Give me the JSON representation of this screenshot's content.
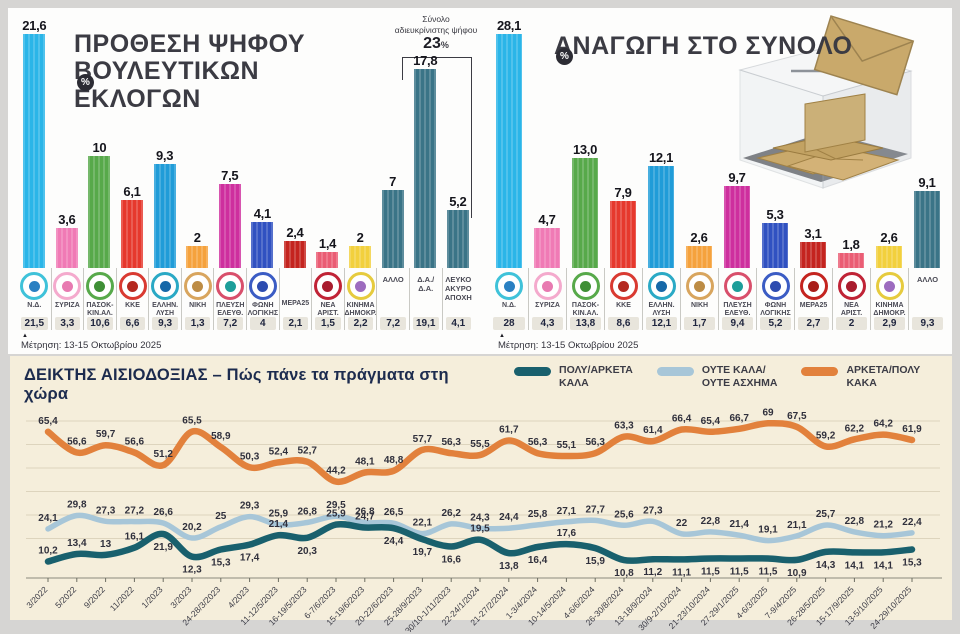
{
  "page": {
    "percent_badge": "%",
    "note_marker": "▲"
  },
  "chart_data": [
    {
      "type": "bar",
      "title": "ΠΡΟΘΕΣΗ ΨΗΦΟΥ ΒΟΥΛΕΥΤΙΚΩΝ ΕΚΛΟΓΩΝ",
      "unit": "%",
      "footnote": "Μέτρηση: 13-15 Οκτωβρίου 2025",
      "annotation": {
        "line1": "Σύνολο",
        "line2": "αδιευκρίνιστης ψήφου",
        "value": "23",
        "unit": "%",
        "covers": [
          "Δ.Α./Δ.Α.",
          "ΛΕΥΚΟ ΑΚΥΡΟ ΑΠΟΧΗ"
        ]
      },
      "parties": [
        {
          "label": "Ν.Δ.",
          "value": 21.6,
          "value_label": "21,6",
          "prev": "21,5",
          "color": "#2ab5e8",
          "icon": "nd-icon",
          "ring": "#3fc2d9",
          "inner": "#2a80c2"
        },
        {
          "label": "ΣΥΡΙΖΑ",
          "value": 3.6,
          "value_label": "3,6",
          "prev": "3,3",
          "color": "#f07ab5",
          "icon": "syriza-icon",
          "ring": "#f4aacd",
          "inner": "#e87ab1"
        },
        {
          "label": "ΠΑΣΟΚ-ΚΙΝ.ΑΛ.",
          "value": 10,
          "value_label": "10",
          "prev": "10,6",
          "color": "#57a94a",
          "icon": "pasok-icon",
          "ring": "#57a94a",
          "inner": "#3f8f36"
        },
        {
          "label": "ΚΚΕ",
          "value": 6.1,
          "value_label": "6,1",
          "prev": "6,6",
          "color": "#e6382d",
          "icon": "kke-icon",
          "ring": "#d93a31",
          "inner": "#b5281f"
        },
        {
          "label": "ΕΛΛΗΝ. ΛΥΣΗ",
          "value": 9.3,
          "value_label": "9,3",
          "prev": "9,3",
          "color": "#209cd8",
          "icon": "elliniki-lysi-icon",
          "ring": "#2aa9c5",
          "inner": "#1668a8"
        },
        {
          "label": "ΝΙΚΗ",
          "value": 2,
          "value_label": "2",
          "prev": "1,3",
          "color": "#f5a23d",
          "icon": "niki-icon",
          "ring": "#d8a55e",
          "inner": "#bd8c45"
        },
        {
          "label": "ΠΛΕΥΣΗ ΕΛΕΥΘ.",
          "value": 7.5,
          "value_label": "7,5",
          "prev": "7,2",
          "color": "#ce2f9e",
          "icon": "plefsi-eleftherias-icon",
          "ring": "#d84f6b",
          "inner": "#1d9e9a"
        },
        {
          "label": "ΦΩΝΗ ΛΟΓΙΚΗΣ",
          "value": 4.1,
          "value_label": "4,1",
          "prev": "4",
          "color": "#3051c1",
          "icon": "foni-logikis-icon",
          "ring": "#3b5cc4",
          "inner": "#2d4cb0"
        },
        {
          "label": "ΜΕΡΑ25",
          "value": 2.4,
          "value_label": "2,4",
          "prev": "2,1",
          "color": "#c4241f",
          "icon": null,
          "top_label": false
        },
        {
          "label": "ΝΕΑ ΑΡΙΣΤ.",
          "value": 1.4,
          "value_label": "1,4",
          "prev": "1,5",
          "color": "#ea5d74",
          "icon": "nea-aristera-icon",
          "ring": "#c02336",
          "inner": "#a91c2e"
        },
        {
          "label": "ΚΙΝΗΜΑ ΔΗΜΟΚΡ.",
          "value": 2,
          "value_label": "2",
          "prev": "2,2",
          "color": "#f2d03d",
          "icon": "kinima-dimokratias-icon",
          "ring": "#e6cb3e",
          "inner": "#9d6cbf"
        },
        {
          "label": "ΑΛΛΟ",
          "value": 7,
          "value_label": "7",
          "prev": "7,2",
          "color": "#3a7487",
          "icon": null,
          "top_label": true
        },
        {
          "label": "Δ.Α./ Δ.Α.",
          "value": 17.8,
          "value_label": "17,8",
          "prev": "19,1",
          "color": "#3a7487",
          "icon": null,
          "top_label": true
        },
        {
          "label": "ΛΕΥΚΟ ΑΚΥΡΟ ΑΠΟΧΗ",
          "value": 5.2,
          "value_label": "5,2",
          "prev": "4,1",
          "color": "#3a7487",
          "icon": null,
          "top_label": true
        }
      ]
    },
    {
      "type": "bar",
      "title": "ΑΝΑΓΩΓΗ ΣΤΟ ΣΥΝΟΛΟ",
      "unit": "%",
      "footnote": "Μέτρηση: 13-15 Οκτωβρίου 2025",
      "parties": [
        {
          "label": "Ν.Δ.",
          "value": 28.1,
          "value_label": "28,1",
          "prev": "28",
          "color": "#2ab5e8",
          "icon": "nd-icon",
          "ring": "#3fc2d9",
          "inner": "#2a80c2"
        },
        {
          "label": "ΣΥΡΙΖΑ",
          "value": 4.7,
          "value_label": "4,7",
          "prev": "4,3",
          "color": "#f07ab5",
          "icon": "syriza-icon",
          "ring": "#f4aacd",
          "inner": "#e87ab1"
        },
        {
          "label": "ΠΑΣΟΚ-ΚΙΝ.ΑΛ.",
          "value": 13.0,
          "value_label": "13,0",
          "prev": "13,8",
          "color": "#57a94a",
          "icon": "pasok-icon",
          "ring": "#57a94a",
          "inner": "#3f8f36"
        },
        {
          "label": "ΚΚΕ",
          "value": 7.9,
          "value_label": "7,9",
          "prev": "8,6",
          "color": "#e6382d",
          "icon": "kke-icon",
          "ring": "#d93a31",
          "inner": "#b5281f"
        },
        {
          "label": "ΕΛΛΗΝ. ΛΥΣΗ",
          "value": 12.1,
          "value_label": "12,1",
          "prev": "12,1",
          "color": "#209cd8",
          "icon": "elliniki-lysi-icon",
          "ring": "#2aa9c5",
          "inner": "#1668a8"
        },
        {
          "label": "ΝΙΚΗ",
          "value": 2.6,
          "value_label": "2,6",
          "prev": "1,7",
          "color": "#f5a23d",
          "icon": "niki-icon",
          "ring": "#d8a55e",
          "inner": "#bd8c45"
        },
        {
          "label": "ΠΛΕΥΣΗ ΕΛΕΥΘ.",
          "value": 9.7,
          "value_label": "9,7",
          "prev": "9,4",
          "color": "#ce2f9e",
          "icon": "plefsi-eleftherias-icon",
          "ring": "#d84f6b",
          "inner": "#1d9e9a"
        },
        {
          "label": "ΦΩΝΗ ΛΟΓΙΚΗΣ",
          "value": 5.3,
          "value_label": "5,3",
          "prev": "5,2",
          "color": "#3051c1",
          "icon": "foni-logikis-icon",
          "ring": "#3b5cc4",
          "inner": "#2d4cb0"
        },
        {
          "label": "ΜΕΡΑ25",
          "value": 3.1,
          "value_label": "3,1",
          "prev": "2,7",
          "color": "#c4241f",
          "icon": "mera25-icon",
          "ring": "#c4241f",
          "inner": "#a91c18"
        },
        {
          "label": "ΝΕΑ ΑΡΙΣΤ.",
          "value": 1.8,
          "value_label": "1,8",
          "prev": "2",
          "color": "#ea5d74",
          "icon": "nea-aristera-icon",
          "ring": "#c02336",
          "inner": "#a91c2e"
        },
        {
          "label": "ΚΙΝΗΜΑ ΔΗΜΟΚΡ.",
          "value": 2.6,
          "value_label": "2,6",
          "prev": "2,9",
          "color": "#f2d03d",
          "icon": "kinima-dimokratias-icon",
          "ring": "#e6cb3e",
          "inner": "#9d6cbf"
        },
        {
          "label": "ΑΛΛΟ",
          "value": 9.1,
          "value_label": "9,1",
          "prev": "9,3",
          "color": "#3a7487",
          "icon": null,
          "top_label": true
        }
      ]
    },
    {
      "type": "line",
      "title": "ΔΕΙΚΤΗΣ ΑΙΣΙΟΔΟΞΙΑΣ – Πώς πάνε τα πράγματα στη χώρα",
      "grid": true,
      "ylim": [
        8,
        75
      ],
      "legend_position": "top-right",
      "x_labels": [
        "3/2022",
        "5/2022",
        "9/2022",
        "11/2022",
        "1/2023",
        "3/2023",
        "24-28/3/2023",
        "4/2023",
        "11-12/5/2023",
        "16-19/5/2023",
        "6-7/6/2023",
        "15-19/6/2023",
        "20-22/6/2023",
        "25-28/9/2023",
        "30/10-1/11/2023",
        "22-24/1/2024",
        "21-27/2/2024",
        "1-3/4/2024",
        "10-14/5/2024",
        "4-6/6/2024",
        "26-30/8/2024",
        "13-18/9/2024",
        "30/9-2/10/2024",
        "21-23/10/2024",
        "27-29/1/2025",
        "4-6/3/2025",
        "7-9/4/2025",
        "26-28/5/2025",
        "15-17/9/2025",
        "13-5/10/2025",
        "24-29/10/2025"
      ],
      "series": [
        {
          "name": "ΑΡΚΕΤΑ/ΠΟΛΥ ΚΑΚΑ",
          "legend_label": "ΑΡΚΕΤΑ/ΠΟΛΥ\nΚΑΚΑ",
          "color": "#e2813c",
          "values": [
            65.4,
            56.6,
            59.7,
            56.6,
            51.2,
            65.5,
            58.9,
            50.3,
            52.4,
            52.7,
            44.2,
            48.1,
            48.8,
            57.7,
            56.3,
            55.5,
            61.7,
            56.3,
            55.1,
            56.3,
            63.3,
            61.4,
            66.4,
            65.4,
            66.7,
            69,
            67.5,
            59.2,
            62.2,
            64.2,
            61.9
          ],
          "label_above_all": true
        },
        {
          "name": "ΟΥΤΕ ΚΑΛΑ/ΟΥΤΕ ΑΣΧΗΜΑ",
          "legend_label": "ΟΥΤΕ ΚΑΛΑ/\nΟΥΤΕ ΑΣΧΗΜΑ",
          "color": "#a7c6d8",
          "values": [
            24.1,
            29.8,
            27.3,
            27.2,
            26.6,
            20.2,
            25,
            29.3,
            25.9,
            26.8,
            29.5,
            26.8,
            26.5,
            22.1,
            26.2,
            24.3,
            24.4,
            25.8,
            27.1,
            27.7,
            25.6,
            27.3,
            22,
            22.8,
            21.4,
            19.1,
            21.1,
            25.7,
            22.8,
            21.2,
            22.4
          ],
          "label_above_all": true
        },
        {
          "name": "ΠΟΛΥ/ΑΡΚΕΤΑ ΚΑΛΑ",
          "legend_label": "ΠΟΛΥ/ΑΡΚΕΤΑ\nΚΑΛΑ",
          "color": "#19606d",
          "values": [
            10.2,
            13.4,
            13,
            16.1,
            21.9,
            12.3,
            15.3,
            17.4,
            21.4,
            20.3,
            25.9,
            24.7,
            24.4,
            19.7,
            16.6,
            19.5,
            13.8,
            16.4,
            17.6,
            15.9,
            10.8,
            11.2,
            11.1,
            11.5,
            11.5,
            11.5,
            10.9,
            14.3,
            14.1,
            14.1,
            15.3
          ],
          "label_above_all": false,
          "label_above_idx": [
            0,
            1,
            2,
            3,
            8,
            10,
            11,
            15,
            18
          ]
        }
      ],
      "legend_order": [
        2,
        1,
        0
      ]
    }
  ]
}
